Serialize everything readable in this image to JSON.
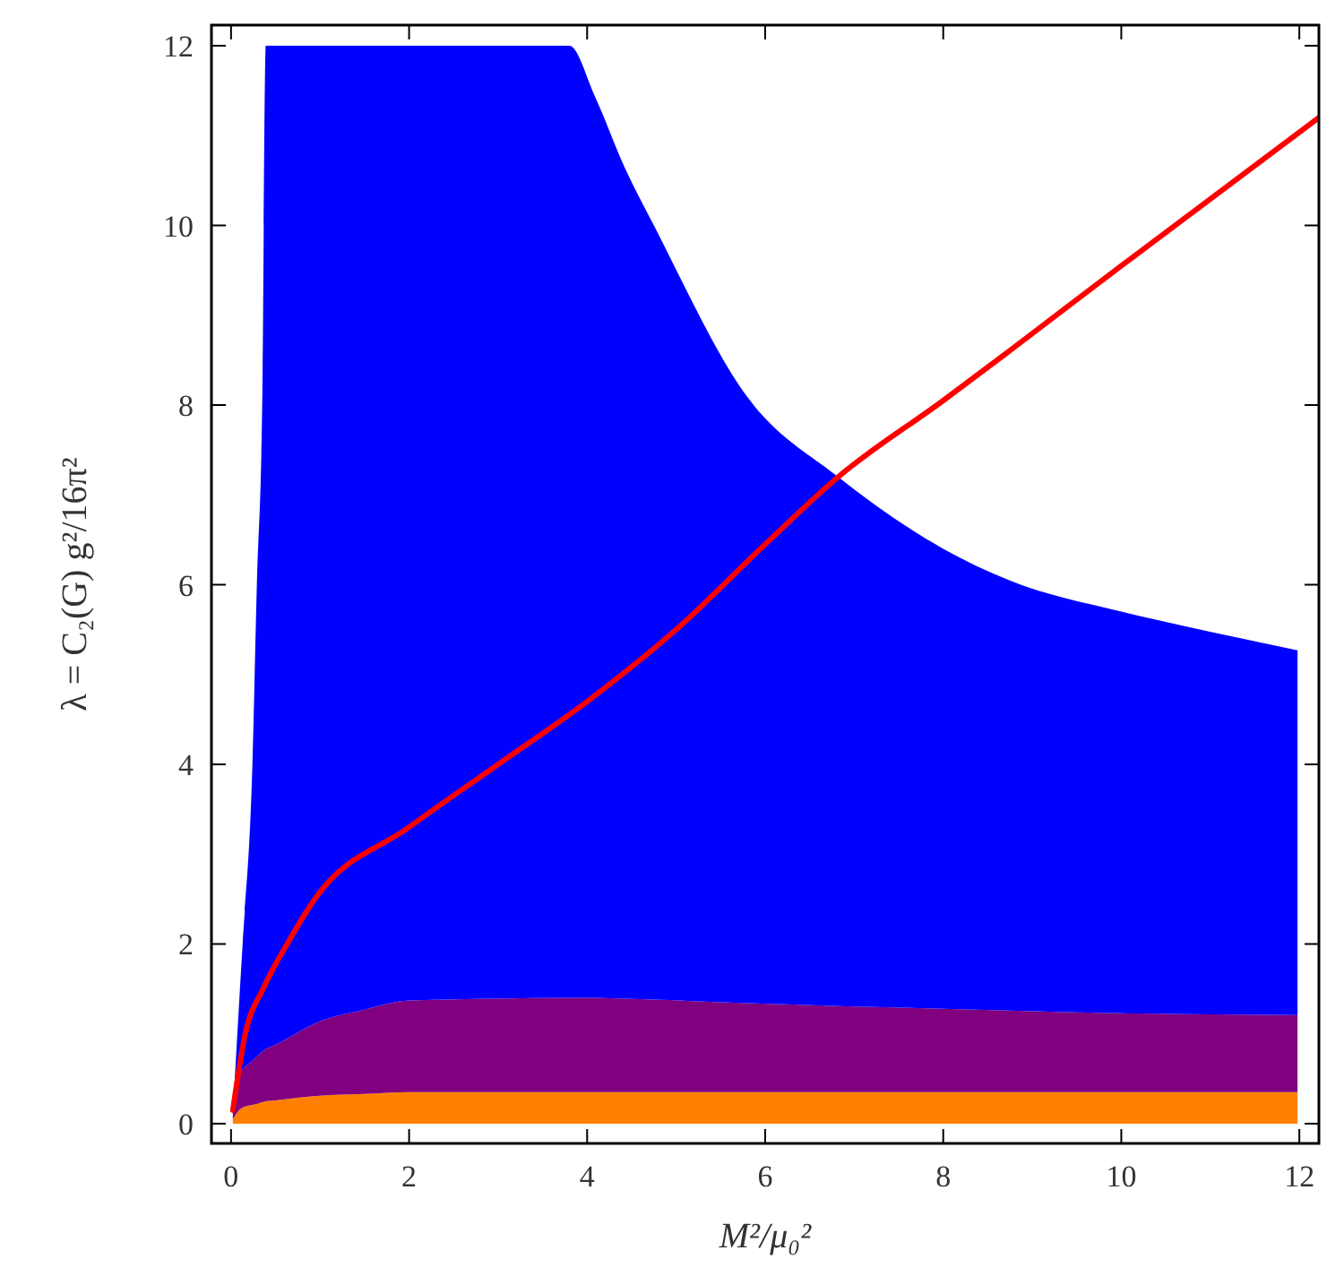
{
  "chart_data": {
    "type": "area",
    "stacked": true,
    "xlabel": "M²/μ₀²",
    "ylabel": "λ = C₂(G) g²/16π²",
    "xlim": [
      -0.22,
      12.22
    ],
    "ylim": [
      -0.22,
      12.23
    ],
    "xticks": [
      0,
      2,
      4,
      6,
      8,
      10,
      12
    ],
    "yticks": [
      0,
      2,
      4,
      6,
      8,
      10,
      12
    ],
    "grid": false,
    "x": [
      0.02,
      0.1,
      0.13,
      0.24,
      0.29,
      0.35,
      0.39,
      0.5,
      1,
      1.5,
      2,
      3,
      3.8,
      4.09,
      4.42,
      4.75,
      5.8,
      6.82,
      8,
      8.74,
      10,
      10.7,
      11.98
    ],
    "series": [
      {
        "color": "#ff8000",
        "values": [
          0.05,
          0.16,
          0.18,
          0.21,
          0.22,
          0.24,
          0.25,
          0.26,
          0.31,
          0.33,
          0.35,
          0.35,
          0.35,
          0.35,
          0.35,
          0.35,
          0.35,
          0.35,
          0.35,
          0.35,
          0.35,
          0.35,
          0.35
        ]
      },
      {
        "color": "#800080",
        "values": [
          0.05,
          0.39,
          0.42,
          0.49,
          0.53,
          0.56,
          0.58,
          0.62,
          0.83,
          0.94,
          1.02,
          1.04,
          1.05,
          1.05,
          1.04,
          1.03,
          0.99,
          0.96,
          0.93,
          0.91,
          0.88,
          0.87,
          0.86
        ]
      },
      {
        "color": "#0000ff",
        "values": [
          0,
          0.95,
          1.4,
          3.3,
          5.25,
          7.2,
          11.17,
          11.12,
          10.86,
          10.73,
          10.63,
          10.61,
          10.6,
          10.03,
          9.26,
          8.62,
          6.75,
          5.89,
          5.12,
          4.79,
          4.47,
          4.32,
          4.06
        ]
      },
      {
        "type": "line",
        "color": "#ff0000",
        "x": [
          0.02,
          0.16,
          0.36,
          0.63,
          0.94,
          2,
          3,
          4,
          5,
          6,
          6.82,
          8,
          8.74,
          10,
          12.22
        ],
        "values": [
          0.15,
          1,
          1.5,
          2,
          2.5,
          3.3,
          4,
          4.7,
          5.5,
          6.45,
          7.2,
          8.05,
          8.6,
          9.55,
          11.2
        ]
      }
    ]
  }
}
